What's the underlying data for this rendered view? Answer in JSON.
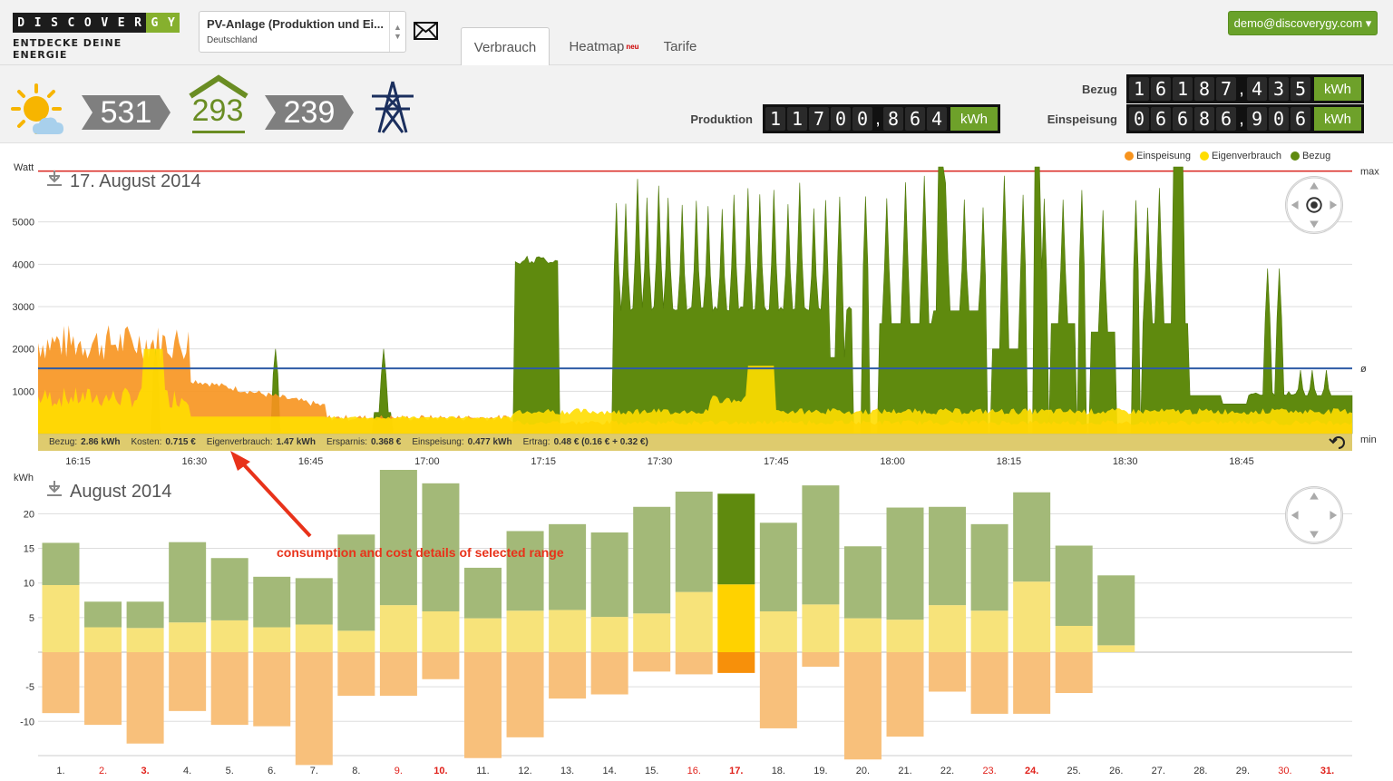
{
  "header": {
    "logo_word": [
      "D",
      "I",
      "S",
      "C",
      "O",
      "V",
      "E",
      "R",
      "G",
      "Y"
    ],
    "logo_tagline": "ENTDECKE DEINE ENERGIE",
    "device": {
      "name": "PV-Anlage (Produktion und Ei...",
      "country": "Deutschland"
    },
    "tabs": [
      {
        "label": "Verbrauch"
      },
      {
        "label": "Heatmap",
        "badge": "neu"
      },
      {
        "label": "Tarife"
      }
    ],
    "user": "demo@discoverygy.com ▾"
  },
  "status": {
    "solar_value": "531",
    "house_value": "293",
    "grid_value": "239",
    "counters": [
      {
        "label": "Bezug",
        "int": "16187",
        "frac": "435",
        "unit": "kWh"
      },
      {
        "label": "Produktion",
        "int": "11700",
        "frac": "864",
        "unit": "kWh"
      },
      {
        "label": "Einspeisung",
        "int": "06686",
        "frac": "906",
        "unit": "kWh"
      }
    ]
  },
  "colors": {
    "einspeisung": "#f7931e",
    "eigenverbrauch": "#ffdd00",
    "bezug": "#5f8a0e",
    "maxline": "#d9231d",
    "avgline": "#2e5ba6"
  },
  "legend": [
    "Einspeisung",
    "Eigenverbrauch",
    "Bezug"
  ],
  "chart_data": [
    {
      "type": "area",
      "title": "17. August 2014",
      "ylabel": "Watt",
      "ylim": [
        0,
        6300
      ],
      "yticks": [
        1000,
        2000,
        3000,
        4000,
        5000
      ],
      "right_labels": [
        "max",
        "ø",
        "min"
      ],
      "avg": 1540,
      "max": 6200,
      "min": 520,
      "x_ticks": [
        "16:15",
        "16:30",
        "16:45",
        "17:00",
        "17:15",
        "17:30",
        "17:45",
        "18:00",
        "18:15",
        "18:30",
        "18:45"
      ],
      "summary": [
        {
          "k": "Bezug:",
          "v": "2.86 kWh"
        },
        {
          "k": "Kosten:",
          "v": "0.715 €"
        },
        {
          "k": "Eigenverbrauch:",
          "v": "1.47 kWh"
        },
        {
          "k": "Ersparnis:",
          "v": "0.368 €"
        },
        {
          "k": "Einspeisung:",
          "v": "0.477 kWh"
        },
        {
          "k": "Ertrag:",
          "v": "0.48 € (0.16 € + 0.32 €)"
        }
      ]
    },
    {
      "type": "bar",
      "title": "August 2014",
      "ylabel": "kWh",
      "ylim": [
        -16,
        27
      ],
      "yticks": [
        20,
        15,
        10,
        5,
        -5,
        -10
      ],
      "categories": [
        "1.",
        "2.",
        "3.",
        "4.",
        "5.",
        "6.",
        "7.",
        "8.",
        "9.",
        "10.",
        "11.",
        "12.",
        "13.",
        "14.",
        "15.",
        "16.",
        "17.",
        "18.",
        "19.",
        "20.",
        "21.",
        "22.",
        "23.",
        "24.",
        "25.",
        "26.",
        "27.",
        "28.",
        "29.",
        "30.",
        "31."
      ],
      "weekend": [
        "2.",
        "3.",
        "9.",
        "10.",
        "16.",
        "17.",
        "23.",
        "24.",
        "30.",
        "31."
      ],
      "selected": "17.",
      "series": [
        {
          "name": "Eigenverbrauch",
          "values": [
            9.7,
            3.6,
            3.5,
            4.3,
            4.6,
            3.6,
            4.0,
            3.1,
            6.8,
            5.9,
            4.9,
            6.0,
            6.1,
            5.1,
            5.6,
            8.7,
            9.8,
            5.9,
            6.9,
            4.9,
            4.7,
            6.8,
            6.0,
            10.2,
            3.8,
            1.0,
            0,
            0,
            0,
            0,
            0
          ]
        },
        {
          "name": "Bezug",
          "values": [
            6.1,
            3.7,
            3.8,
            11.6,
            9.0,
            7.3,
            6.7,
            13.9,
            19.6,
            18.5,
            7.3,
            11.5,
            12.4,
            12.2,
            15.4,
            14.5,
            13.1,
            12.8,
            17.2,
            10.4,
            16.2,
            14.2,
            12.5,
            12.9,
            11.6,
            10.1,
            0,
            0,
            0,
            0,
            0
          ]
        },
        {
          "name": "Einspeisung",
          "values": [
            -8.8,
            -10.5,
            -13.2,
            -8.5,
            -10.5,
            -10.7,
            -16.3,
            -6.3,
            -6.3,
            -3.9,
            -15.3,
            -12.3,
            -6.7,
            -6.1,
            -2.8,
            -3.2,
            -3.0,
            -11.0,
            -2.1,
            -15.5,
            -12.2,
            -5.7,
            -8.9,
            -8.9,
            -5.9,
            0,
            0,
            0,
            0,
            0,
            0
          ]
        }
      ]
    }
  ],
  "annotation": "consumption and cost details of selected range"
}
